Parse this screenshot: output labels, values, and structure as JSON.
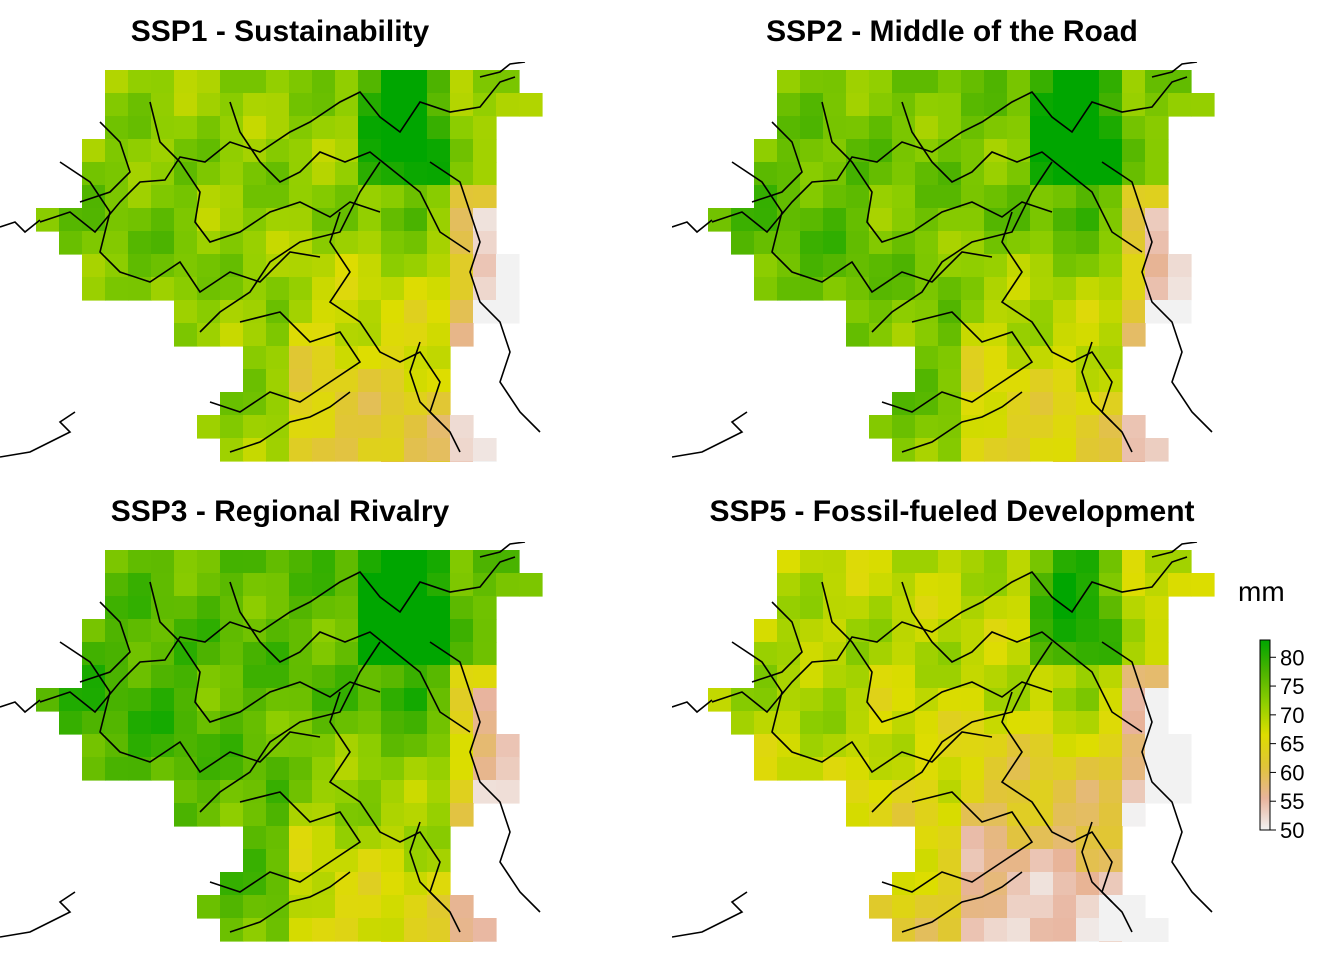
{
  "panels": [
    {
      "title": "SSP1 - Sustainability",
      "shift": 0,
      "palette": "normal"
    },
    {
      "title": "SSP2 - Middle of the Road",
      "shift": 2,
      "palette": "normal"
    },
    {
      "title": "SSP3 - Regional Rivalry",
      "shift": 4,
      "palette": "normal"
    },
    {
      "title": "SSP5 - Fossil-fueled Development",
      "shift": -3,
      "palette": "normal"
    }
  ],
  "legend": {
    "title": "mm",
    "ticks": [
      "80",
      "75",
      "70",
      "65",
      "60",
      "55",
      "50"
    ],
    "min": 50,
    "max": 83,
    "colors": [
      "#f2f2f2",
      "#e8b39c",
      "#e1c43a",
      "#dddd00",
      "#8fce00",
      "#4cb300",
      "#00a600"
    ]
  }
}
